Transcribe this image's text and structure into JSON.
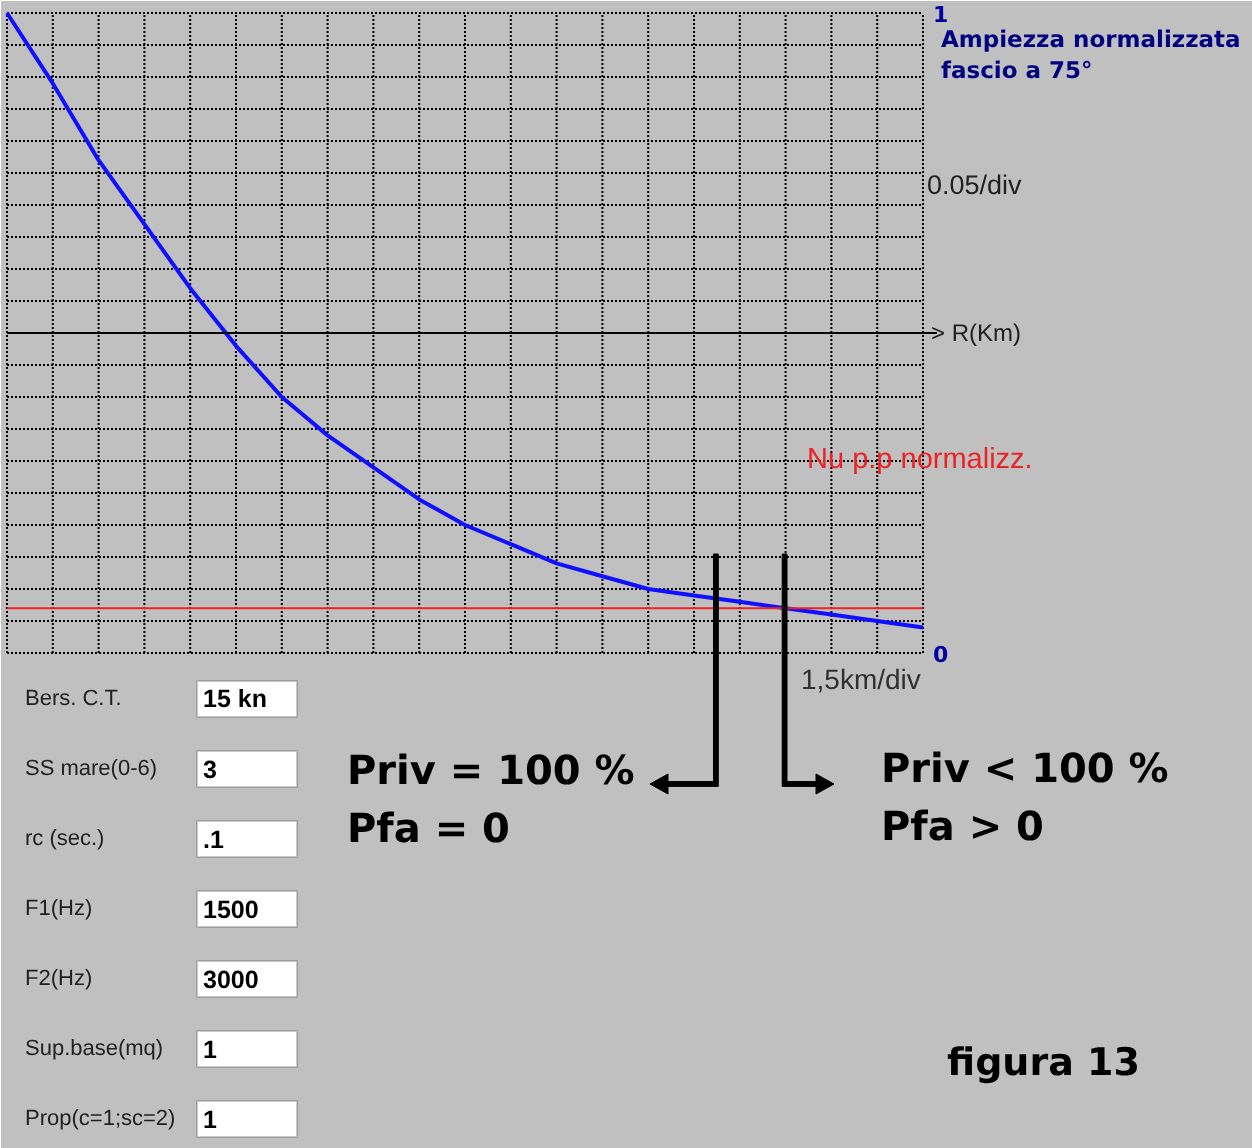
{
  "chart_data": {
    "type": "line",
    "ylabel": "Ampiezza normalizzata\nfascio a 75°",
    "categories": [
      null,
      null,
      null,
      null,
      null,
      null,
      null,
      null,
      null,
      null,
      null,
      null,
      null,
      null,
      null,
      null,
      null,
      null,
      null,
      null,
      null
    ],
    "series": [
      {
        "color": "#1010ff",
        "values": [
          1.0,
          0.89,
          0.77,
          0.67,
          0.57,
          0.48,
          0.4,
          0.34,
          0.29,
          0.24,
          0.2,
          0.17,
          0.14,
          0.12,
          0.1,
          0.09,
          0.08,
          0.07,
          0.06,
          0.05,
          0.04
        ]
      }
    ],
    "ylim": [
      0,
      1
    ],
    "yticks": [
      0,
      {
        "value": 0.05,
        "label": null
      },
      {
        "value": 0.1,
        "label": null
      },
      {
        "value": 0.15,
        "label": null
      },
      {
        "value": 0.2,
        "label": null
      },
      {
        "value": 0.25,
        "label": null
      },
      {
        "value": 0.3,
        "label": null
      },
      {
        "value": 0.35,
        "label": null
      },
      {
        "value": 0.4,
        "label": null
      },
      {
        "value": 0.45,
        "label": null
      },
      {
        "value": 0.5,
        "label": null
      },
      {
        "value": 0.55,
        "label": null
      },
      {
        "value": 0.6,
        "label": null
      },
      {
        "value": 0.65,
        "label": null
      },
      {
        "value": 0.7,
        "label": null
      },
      {
        "value": 0.75,
        "label": null
      },
      {
        "value": 0.8,
        "label": null
      },
      {
        "value": 0.85,
        "label": null
      },
      {
        "value": 0.9,
        "label": null
      },
      {
        "value": 0.95,
        "label": null
      },
      1
    ],
    "tick_labels": "y",
    "grid": true,
    "line_style": "solid",
    "ref_lines": [
      {
        "axis": "y",
        "value": 0.5,
        "label": "> R(Km)",
        "color": "#000000"
      },
      {
        "axis": "y",
        "value": 0.07,
        "label": "Nu  p.p normalizz.",
        "color": "#ee2222"
      }
    ],
    "annotations": [
      "0.05/div",
      "1,5km/div",
      "Priv = 100 %\nPfa = 0",
      "Priv < 100 %\nPfa > 0",
      "figura 13",
      "Bers. C.T.",
      "15 kn",
      "SS mare(0-6)",
      "3",
      "rc (sec.)",
      ".1",
      "F1(Hz)",
      "1500",
      "F2(Hz)",
      "3000",
      "Sup.base(mq)",
      "1",
      "Prop(c=1;sc=2)",
      "1"
    ]
  }
}
